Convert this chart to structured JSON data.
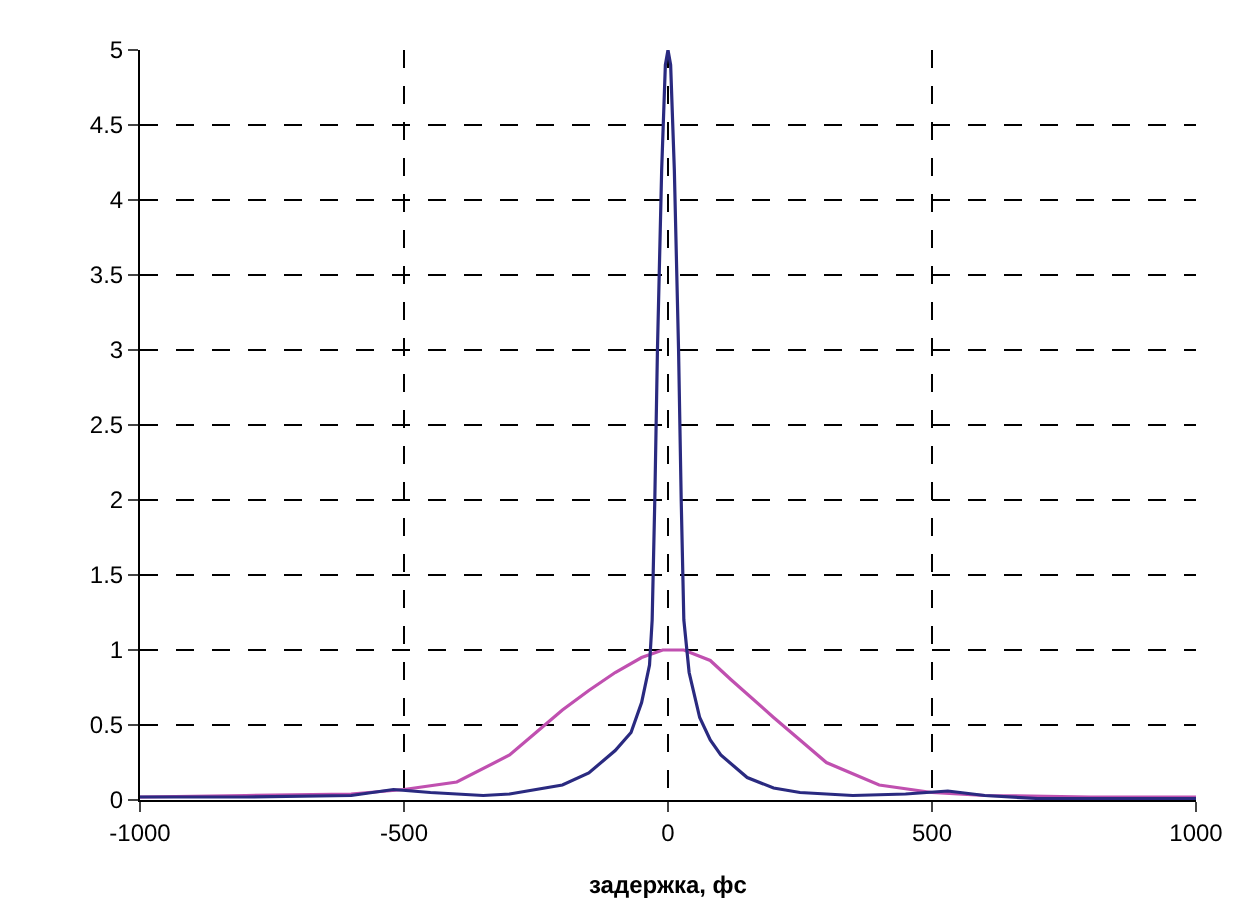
{
  "chart_data": {
    "type": "line",
    "xlabel": "задержка, фс",
    "xlim": [
      -1000,
      1000
    ],
    "xticks": [
      -1000,
      -500,
      0,
      500,
      1000
    ],
    "ylim": [
      0,
      5
    ],
    "yticks": [
      0,
      0.5,
      1,
      1.5,
      2,
      2.5,
      3,
      3.5,
      4,
      4.5,
      5
    ],
    "grid": true,
    "marker": "none",
    "line_style": "solid",
    "series": [
      {
        "color": "#c050b0",
        "x": [
          -1000,
          -800,
          -600,
          -500,
          -400,
          -300,
          -250,
          -200,
          -150,
          -100,
          -50,
          -10,
          30,
          80,
          120,
          200,
          250,
          300,
          400,
          500,
          600,
          800,
          1000
        ],
        "values": [
          0.02,
          0.03,
          0.04,
          0.07,
          0.12,
          0.3,
          0.45,
          0.6,
          0.73,
          0.85,
          0.95,
          1.0,
          1.0,
          0.93,
          0.8,
          0.55,
          0.4,
          0.25,
          0.1,
          0.05,
          0.03,
          0.02,
          0.02
        ]
      },
      {
        "color": "#2a2a80",
        "x": [
          -1000,
          -800,
          -600,
          -520,
          -450,
          -350,
          -300,
          -200,
          -150,
          -100,
          -70,
          -50,
          -35,
          -30,
          -25,
          -20,
          -12,
          -5,
          0,
          5,
          12,
          20,
          25,
          30,
          40,
          60,
          80,
          100,
          150,
          200,
          250,
          350,
          450,
          530,
          600,
          700,
          800,
          1000
        ],
        "values": [
          0.02,
          0.02,
          0.03,
          0.07,
          0.05,
          0.03,
          0.04,
          0.1,
          0.18,
          0.33,
          0.45,
          0.65,
          0.9,
          1.2,
          2,
          3,
          4.2,
          4.9,
          5,
          4.9,
          4.2,
          3,
          2,
          1.2,
          0.85,
          0.55,
          0.4,
          0.3,
          0.15,
          0.08,
          0.05,
          0.03,
          0.04,
          0.06,
          0.03,
          0.01,
          0.01,
          0.01
        ]
      }
    ]
  }
}
